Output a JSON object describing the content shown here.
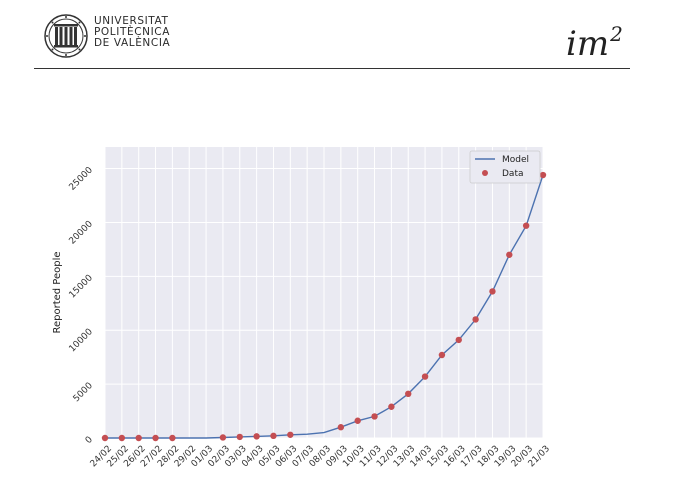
{
  "header": {
    "university_lines": [
      "UNIVERSITAT",
      "POLITÈCNICA",
      "DE VALÈNCIA"
    ],
    "institute_base": "im",
    "institute_sup": "2",
    "logo_icon": "upv-seal-icon"
  },
  "chart_data": {
    "type": "line",
    "title": "",
    "xlabel": "",
    "ylabel": "Reported People",
    "categories": [
      "24/02",
      "25/02",
      "26/02",
      "27/02",
      "28/02",
      "29/02",
      "01/03",
      "02/03",
      "03/03",
      "04/03",
      "05/03",
      "06/03",
      "07/03",
      "08/03",
      "09/03",
      "10/03",
      "11/03",
      "12/03",
      "13/03",
      "14/03",
      "15/03",
      "16/03",
      "17/03",
      "18/03",
      "19/03",
      "20/03",
      "21/03"
    ],
    "ylim": [
      0,
      27000
    ],
    "yticks": [
      0,
      5000,
      10000,
      15000,
      20000,
      25000
    ],
    "ytick_labels": [
      "0",
      "5000",
      "10000",
      "15000",
      "20000",
      "25000"
    ],
    "grid": true,
    "legend_position": "top-right",
    "series": [
      {
        "name": "Model",
        "kind": "line",
        "color": "#4c72b0",
        "values": [
          0,
          0,
          0,
          0,
          0,
          0,
          0,
          50,
          100,
          150,
          200,
          300,
          350,
          500,
          1000,
          1600,
          2000,
          2900,
          4100,
          5700,
          7700,
          9100,
          11000,
          13600,
          17000,
          19700,
          24400
        ]
      },
      {
        "name": "Data",
        "kind": "scatter",
        "color": "#c44e52",
        "x_index": [
          0,
          1,
          2,
          3,
          4,
          7,
          8,
          9,
          10,
          11,
          14,
          15,
          16,
          17,
          18,
          19,
          20,
          21,
          22,
          23,
          24,
          25,
          26
        ],
        "values": [
          0,
          0,
          0,
          0,
          0,
          50,
          100,
          150,
          200,
          300,
          1000,
          1600,
          2000,
          2900,
          4100,
          5700,
          7700,
          9100,
          11000,
          13600,
          17000,
          19700,
          24400
        ]
      }
    ]
  }
}
